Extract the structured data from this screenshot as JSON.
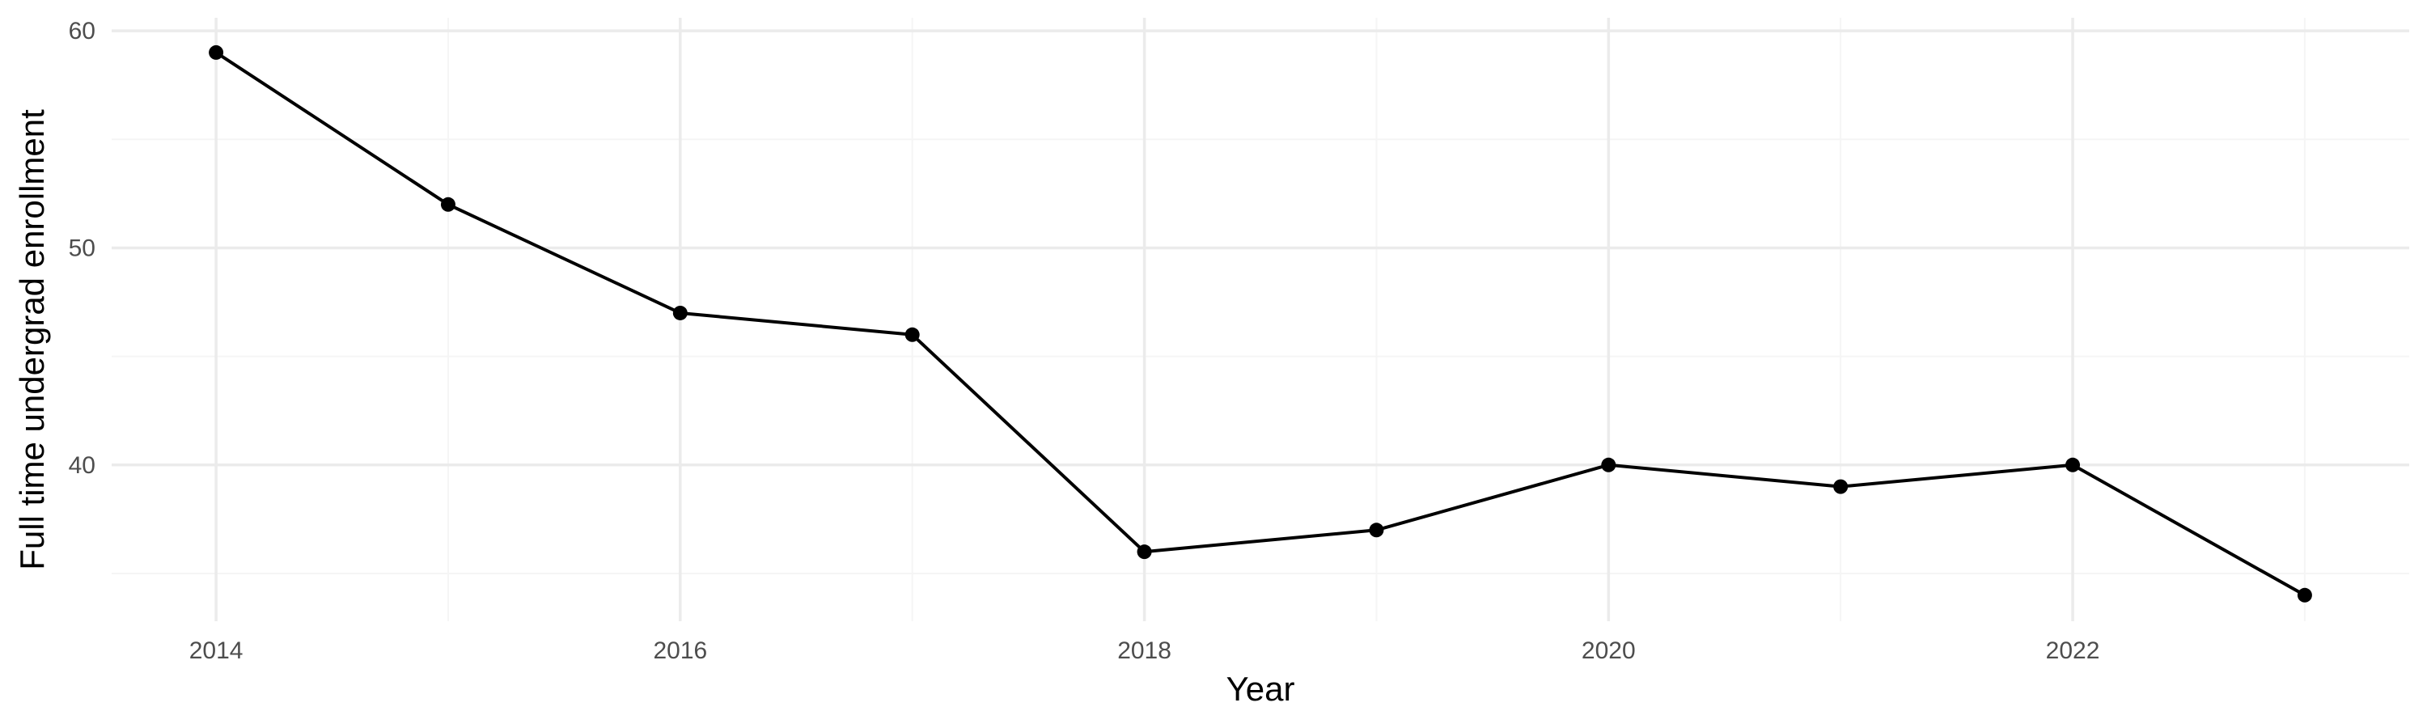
{
  "chart_data": {
    "type": "line",
    "title": "",
    "xlabel": "Year",
    "ylabel": "Full time undergrad enrollment",
    "x": [
      2014,
      2015,
      2016,
      2017,
      2018,
      2019,
      2020,
      2021,
      2022,
      2023
    ],
    "series": [
      {
        "values": [
          59,
          52,
          47,
          46,
          36,
          37,
          40,
          39,
          40,
          34
        ]
      }
    ],
    "xlim": [
      2013.55,
      2023.45
    ],
    "ylim": [
      32.8,
      60.6
    ],
    "x_ticks": [
      2014,
      2016,
      2018,
      2020,
      2022
    ],
    "x_tick_labels": [
      "2014",
      "2016",
      "2018",
      "2020",
      "2022"
    ],
    "x_minor_ticks": [
      2015,
      2017,
      2019,
      2021,
      2023
    ],
    "y_ticks": [
      40,
      50,
      60
    ],
    "y_tick_labels": [
      "40",
      "50",
      "60"
    ],
    "y_minor_ticks": [
      35,
      45,
      55
    ],
    "grid": true,
    "legend": "none",
    "colors": {
      "line": "#000000",
      "point": "#000000",
      "grid_major": "#ebebeb",
      "grid_minor": "#f5f5f5",
      "tick_text": "#4d4d4d",
      "axis_title": "#000000"
    }
  }
}
